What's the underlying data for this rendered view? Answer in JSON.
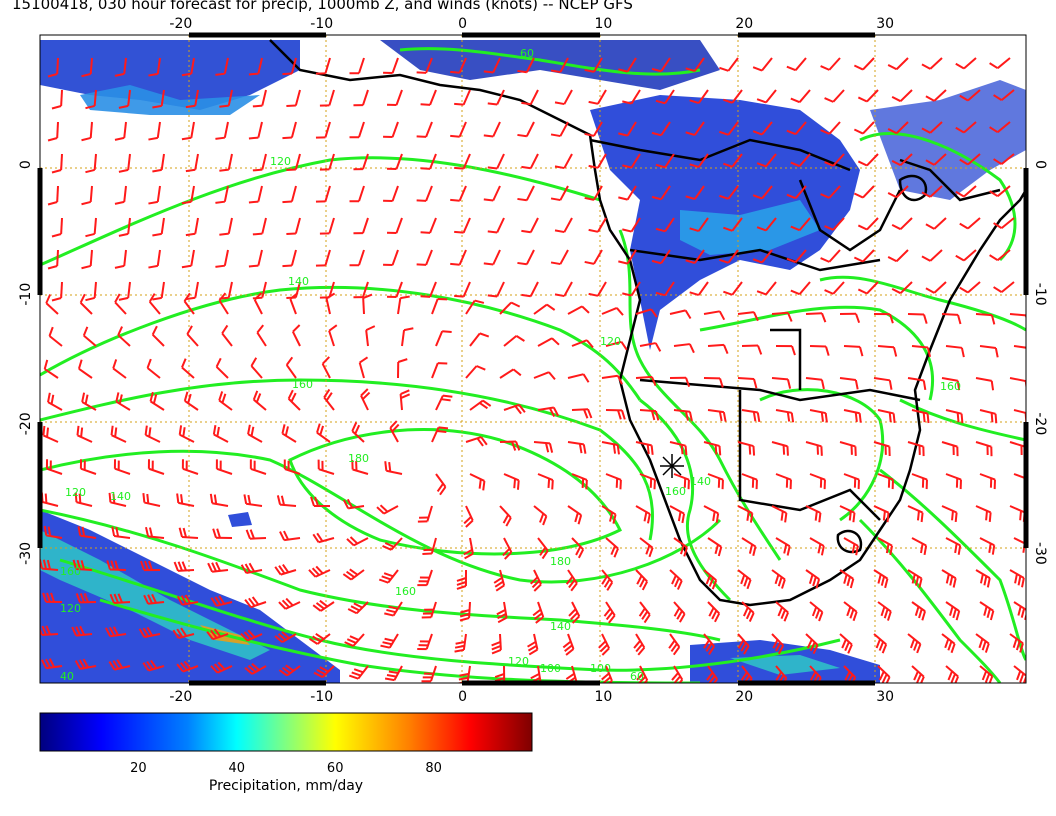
{
  "title": "15100418, 030 hour forecast for precip, 1000mb Z, and winds (knots) -- NCEP GFS",
  "chart_data": {
    "type": "map",
    "lon_ticks": [
      "-20",
      "-10",
      "0",
      "10",
      "20",
      "30"
    ],
    "lon_values": [
      -20,
      -10,
      0,
      10,
      20,
      30
    ],
    "lat_ticks": [
      "0",
      "-10",
      "-20",
      "-30"
    ],
    "lat_values": [
      0,
      -10,
      -20,
      -30
    ],
    "lon_range": [
      -30,
      40
    ],
    "lat_range": [
      -40,
      10
    ],
    "grid": true,
    "contour_labels": [
      "120",
      "140",
      "160",
      "180",
      "160",
      "140",
      "120",
      "100",
      "60",
      "40",
      "120",
      "140",
      "160",
      "180",
      "160",
      "140",
      "120",
      "100",
      "60",
      "120",
      "160"
    ],
    "wind_barbs": true,
    "colors": {
      "wind": "#ff1a1a",
      "contours": "#22ee22",
      "grid": "#d4a017",
      "coast": "#000000"
    },
    "colorbar": {
      "ticks": [
        "20",
        "40",
        "60",
        "80"
      ],
      "tick_values": [
        20,
        40,
        60,
        80
      ],
      "range": [
        0,
        100
      ],
      "label": "Precipitation, mm/day",
      "colors": [
        "#00007f",
        "#0000ff",
        "#0080ff",
        "#00ffff",
        "#80ff80",
        "#ffff00",
        "#ff8000",
        "#ff0000",
        "#7f0000"
      ]
    }
  }
}
